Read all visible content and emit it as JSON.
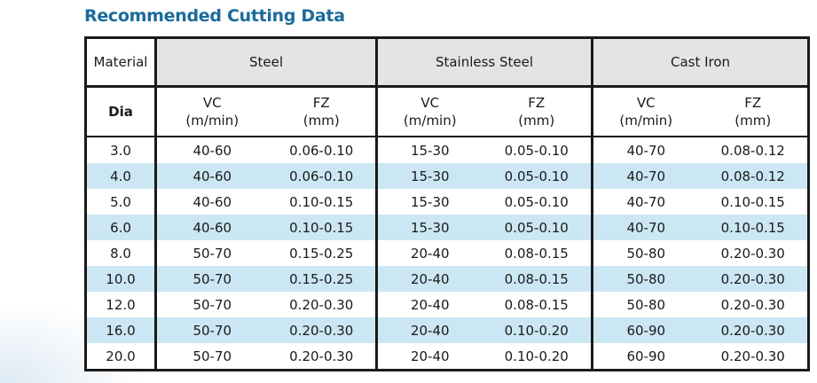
{
  "title": "Recommended Cutting Data",
  "header": {
    "material_label": "Material",
    "dia_label": "Dia",
    "materials": [
      "Steel",
      "Stainless Steel",
      "Cast Iron"
    ],
    "vc_label": "VC",
    "vc_unit": "(m/min)",
    "fz_label": "FZ",
    "fz_unit": "(mm)"
  },
  "rows": [
    {
      "dia": "3.0",
      "steel_vc": "40-60",
      "steel_fz": "0.06-0.10",
      "ss_vc": "15-30",
      "ss_fz": "0.05-0.10",
      "ci_vc": "40-70",
      "ci_fz": "0.08-0.12"
    },
    {
      "dia": "4.0",
      "steel_vc": "40-60",
      "steel_fz": "0.06-0.10",
      "ss_vc": "15-30",
      "ss_fz": "0.05-0.10",
      "ci_vc": "40-70",
      "ci_fz": "0.08-0.12"
    },
    {
      "dia": "5.0",
      "steel_vc": "40-60",
      "steel_fz": "0.10-0.15",
      "ss_vc": "15-30",
      "ss_fz": "0.05-0.10",
      "ci_vc": "40-70",
      "ci_fz": "0.10-0.15"
    },
    {
      "dia": "6.0",
      "steel_vc": "40-60",
      "steel_fz": "0.10-0.15",
      "ss_vc": "15-30",
      "ss_fz": "0.05-0.10",
      "ci_vc": "40-70",
      "ci_fz": "0.10-0.15"
    },
    {
      "dia": "8.0",
      "steel_vc": "50-70",
      "steel_fz": "0.15-0.25",
      "ss_vc": "20-40",
      "ss_fz": "0.08-0.15",
      "ci_vc": "50-80",
      "ci_fz": "0.20-0.30"
    },
    {
      "dia": "10.0",
      "steel_vc": "50-70",
      "steel_fz": "0.15-0.25",
      "ss_vc": "20-40",
      "ss_fz": "0.08-0.15",
      "ci_vc": "50-80",
      "ci_fz": "0.20-0.30"
    },
    {
      "dia": "12.0",
      "steel_vc": "50-70",
      "steel_fz": "0.20-0.30",
      "ss_vc": "20-40",
      "ss_fz": "0.08-0.15",
      "ci_vc": "50-80",
      "ci_fz": "0.20-0.30"
    },
    {
      "dia": "16.0",
      "steel_vc": "50-70",
      "steel_fz": "0.20-0.30",
      "ss_vc": "20-40",
      "ss_fz": "0.10-0.20",
      "ci_vc": "60-90",
      "ci_fz": "0.20-0.30"
    },
    {
      "dia": "20.0",
      "steel_vc": "50-70",
      "steel_fz": "0.20-0.30",
      "ss_vc": "20-40",
      "ss_fz": "0.10-0.20",
      "ci_vc": "60-90",
      "ci_fz": "0.20-0.30"
    }
  ],
  "colors": {
    "title": "#1a6b9a",
    "header_bg": "#e4e4e4",
    "stripe": "#cbe7f3",
    "border": "#1a1a1a"
  }
}
